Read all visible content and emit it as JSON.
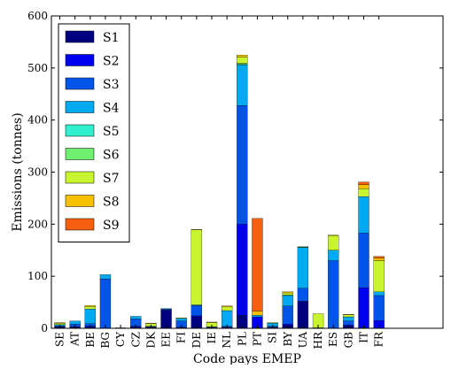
{
  "chart_data": {
    "type": "bar",
    "stacked": true,
    "xlabel": "Code pays EMEP",
    "ylabel": "Emissions (tonnes)",
    "ylim": [
      0,
      600
    ],
    "yticks": [
      0,
      100,
      200,
      300,
      400,
      500,
      600
    ],
    "grid": false,
    "legend_position": "top-left",
    "categories": [
      "SE",
      "AT",
      "BE",
      "BG",
      "CY",
      "CZ",
      "DK",
      "EE",
      "FI",
      "DE",
      "IE",
      "NL",
      "PL",
      "PT",
      "SI",
      "BY",
      "UA",
      "HR",
      "ES",
      "GB",
      "IT",
      "FR"
    ],
    "series": [
      {
        "name": "S1",
        "color": "#000080",
        "values": [
          2,
          2,
          2,
          0,
          0,
          2,
          1,
          35,
          1,
          22,
          1,
          1,
          25,
          0,
          1,
          5,
          52,
          0,
          0,
          4,
          0,
          0
        ]
      },
      {
        "name": "S2",
        "color": "#0000f0",
        "values": [
          1,
          1,
          2,
          0,
          0,
          2,
          1,
          0,
          1,
          2,
          0,
          1,
          175,
          22,
          1,
          3,
          0,
          0,
          0,
          2,
          78,
          15
        ]
      },
      {
        "name": "S3",
        "color": "#0055e8",
        "values": [
          2,
          5,
          5,
          95,
          0,
          14,
          1,
          2,
          12,
          20,
          1,
          2,
          228,
          0,
          2,
          35,
          25,
          0,
          130,
          8,
          105,
          48
        ]
      },
      {
        "name": "S4",
        "color": "#00aaf0",
        "values": [
          2,
          6,
          28,
          8,
          0,
          5,
          1,
          1,
          5,
          1,
          1,
          30,
          78,
          3,
          6,
          20,
          78,
          1,
          20,
          8,
          70,
          7
        ]
      },
      {
        "name": "S5",
        "color": "#30f0d0",
        "values": [
          0,
          0,
          0,
          0,
          0,
          0,
          0,
          0,
          0,
          0,
          0,
          0,
          1,
          0,
          0,
          0,
          1,
          0,
          0,
          0,
          0,
          0
        ]
      },
      {
        "name": "S6",
        "color": "#70f070",
        "values": [
          0,
          0,
          0,
          0,
          0,
          0,
          0,
          0,
          0,
          0,
          0,
          0,
          2,
          0,
          0,
          1,
          1,
          0,
          0,
          0,
          0,
          0
        ]
      },
      {
        "name": "S7",
        "color": "#c8f530",
        "values": [
          3,
          0,
          5,
          0,
          1,
          0,
          5,
          0,
          1,
          144,
          8,
          7,
          12,
          0,
          1,
          4,
          0,
          27,
          28,
          4,
          15,
          60
        ]
      },
      {
        "name": "S8",
        "color": "#f5c000",
        "values": [
          1,
          0,
          2,
          0,
          0,
          0,
          1,
          0,
          0,
          1,
          1,
          2,
          4,
          8,
          0,
          2,
          0,
          0,
          1,
          1,
          8,
          5
        ]
      },
      {
        "name": "S9",
        "color": "#f76010",
        "values": [
          0,
          0,
          0,
          0,
          0,
          0,
          0,
          0,
          0,
          0,
          0,
          0,
          0,
          178,
          0,
          0,
          0,
          0,
          0,
          0,
          5,
          3
        ]
      }
    ]
  }
}
